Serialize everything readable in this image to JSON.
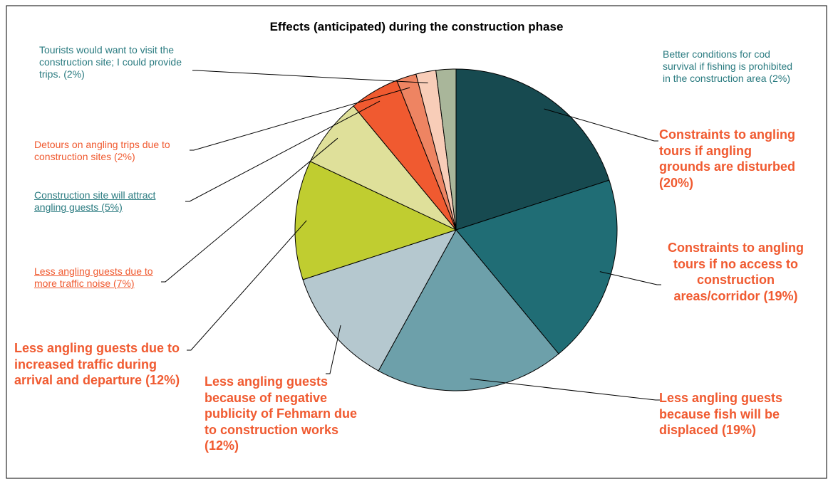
{
  "chart_data": {
    "type": "pie",
    "title": "Effects (anticipated) during the construction phase",
    "categories": [
      "Constraints to angling tours if angling grounds are disturbed (20%)",
      "Constraints to angling tours if no access to construction areas/corridor (19%)",
      "Less angling guests because fish will be displaced (19%)",
      "Less angling guests because of negative publicity of Fehmarn due to construction works (12%)",
      "Less angling guests due to increased traffic during arrival and departure (12%)",
      "Less angling guests due to more traffic noise (7%)",
      "Construction site will attract angling guests (5%)",
      "Detours on angling trips due to construction sites (2%)",
      "Tourists would want to visit the construction site; I could provide trips. (2%)",
      "Better conditions for cod survival if fishing is prohibited in the construction area (2%)"
    ],
    "values": [
      20,
      19,
      19,
      12,
      12,
      7,
      5,
      2,
      2,
      2
    ],
    "colors": [
      "#174a50",
      "#206d75",
      "#6da0aa",
      "#b5c8cf",
      "#c0cd30",
      "#dfe09a",
      "#f05a30",
      "#ee8462",
      "#f8cdb8",
      "#a9b69a"
    ]
  }
}
